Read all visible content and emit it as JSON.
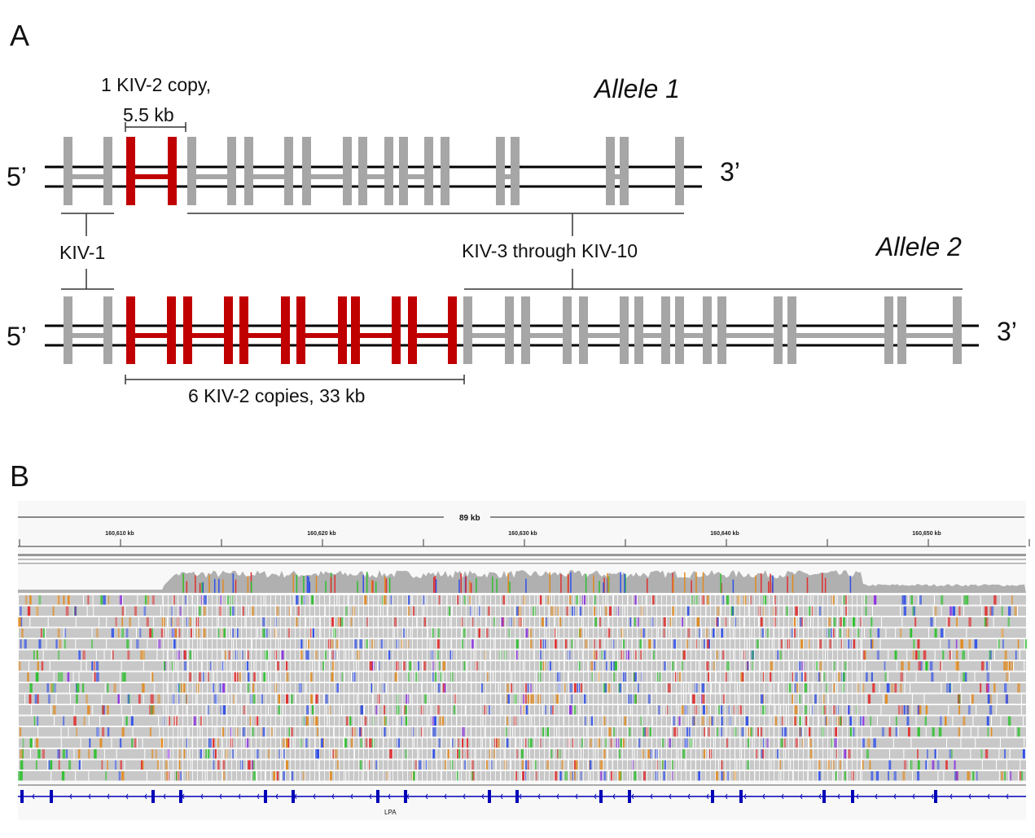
{
  "panel_a": {
    "letter": "A",
    "allele1_label": "Allele 1",
    "allele2_label": "Allele 2",
    "five_prime": "5’",
    "three_prime": "3’",
    "kiv2_single": [
      "1 KIV-2 copy,",
      "5.5 kb"
    ],
    "kiv1_label": "KIV-1",
    "kiv3_10_label": "KIV-3 through KIV-10",
    "kiv2_multi": "6 KIV-2 copies, 33 kb",
    "colors": {
      "kiv2": "#c00000",
      "other_kringle": "#a6a6a6",
      "strand": "#000000"
    }
  },
  "panel_b": {
    "letter": "B",
    "span_label": "89 kb",
    "ticks": [
      "160,610 kb",
      "160,620 kb",
      "160,630 kb",
      "160,640 kb",
      "160,650 kb"
    ],
    "gene_label": "LPA",
    "colors": {
      "coverage": "#b0b0b0",
      "read": "#c8c8c8",
      "gene": "#0000b8",
      "A": "#2fbf2f",
      "C": "#3050e8",
      "G": "#e08a20",
      "T": "#e03030",
      "insertion": "#8a2be2"
    }
  }
}
